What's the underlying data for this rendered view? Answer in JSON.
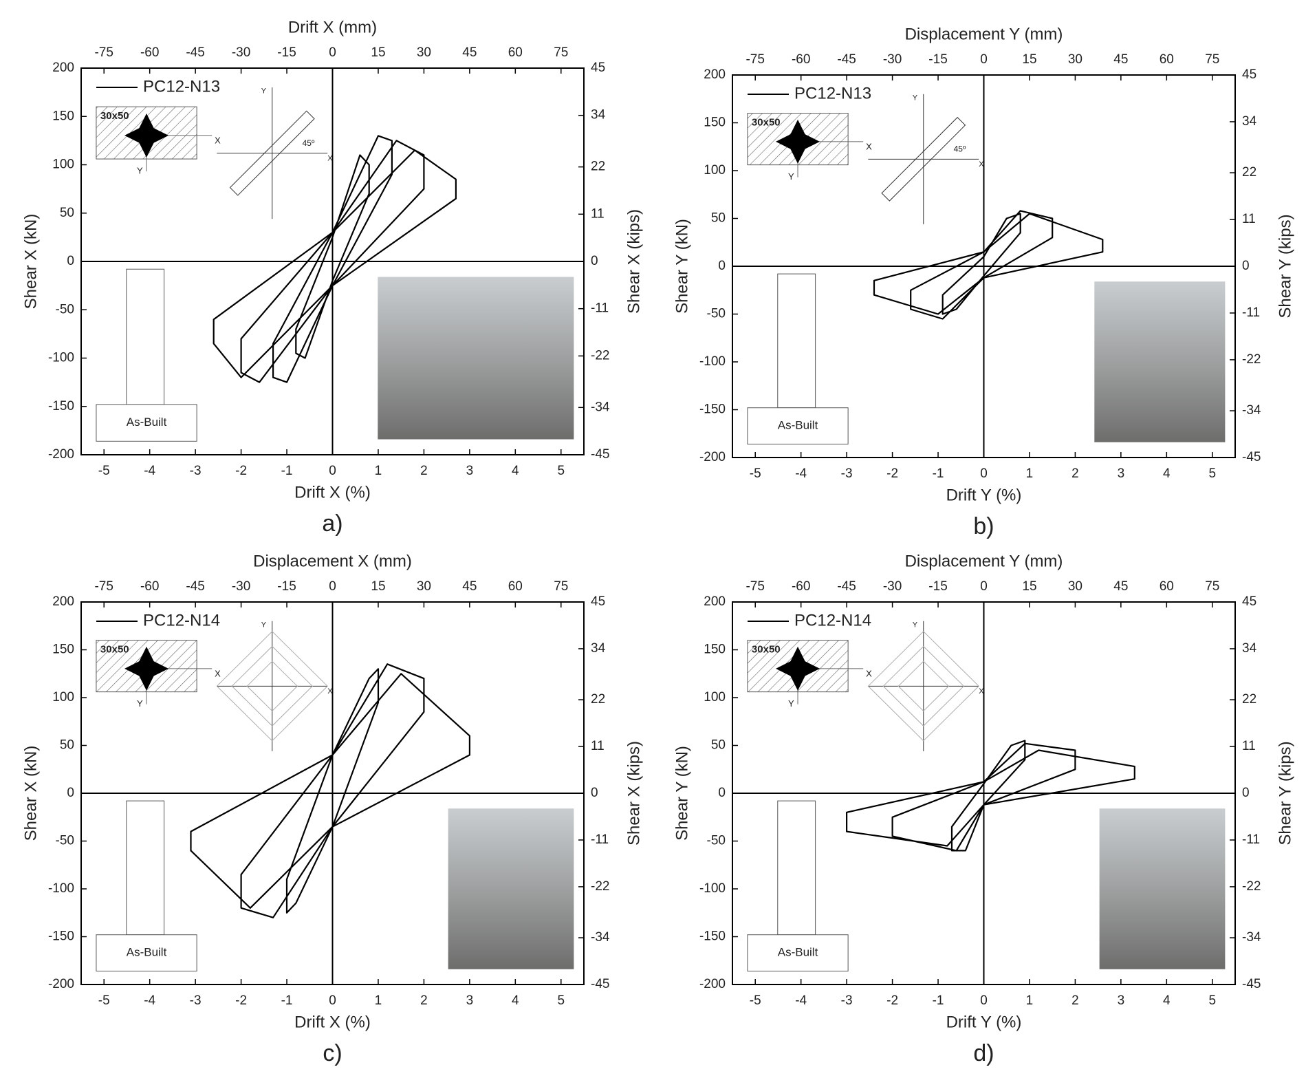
{
  "chart_data": [
    {
      "type": "line",
      "title": "a)",
      "xlabel": "Drift X (%)",
      "x2label": "Drift X (mm)",
      "ylabel": "Shear X (kN)",
      "y2label": "Shear X (kips)",
      "xlim": [
        -5.5,
        5.5
      ],
      "xticks": [
        -5,
        -4,
        -3,
        -2,
        -1,
        0,
        1,
        2,
        3,
        4,
        5
      ],
      "x2lim": [
        -82.5,
        82.5
      ],
      "x2ticks": [
        -75,
        -60,
        -45,
        -30,
        -15,
        0,
        15,
        30,
        45,
        60,
        75
      ],
      "ylim": [
        -200,
        200
      ],
      "yticks": [
        -200,
        -150,
        -100,
        -50,
        0,
        50,
        100,
        150,
        200
      ],
      "y2lim": [
        -45,
        45
      ],
      "y2ticks": [
        -45,
        -34,
        -22,
        -11,
        0,
        11,
        22,
        34,
        45
      ],
      "inset_labels": {
        "section": "30x50",
        "elevation": "As-Built",
        "axis_x": "X",
        "axis_y": "Y",
        "angle": "45º"
      },
      "series": [
        {
          "name": "PC12-N13",
          "color": "#000000",
          "x": [
            0,
            0.6,
            0.8,
            0.8,
            0,
            -0.6,
            -0.8,
            -0.8,
            0,
            null,
            0,
            1.0,
            1.3,
            1.3,
            0,
            -1.0,
            -1.3,
            -1.3,
            0,
            null,
            0,
            1.4,
            2.0,
            2.0,
            0,
            -1.6,
            -2.0,
            -2.0,
            0,
            null,
            0,
            1.8,
            2.7,
            2.7,
            0,
            -2.0,
            -2.6,
            -2.6,
            0
          ],
          "values": [
            25,
            110,
            100,
            70,
            -20,
            -100,
            -95,
            -70,
            25,
            null,
            30,
            130,
            125,
            90,
            -25,
            -125,
            -120,
            -85,
            30,
            null,
            30,
            125,
            110,
            75,
            -25,
            -125,
            -115,
            -80,
            30,
            null,
            30,
            115,
            85,
            65,
            -25,
            -120,
            -85,
            -60,
            30
          ]
        }
      ]
    },
    {
      "type": "line",
      "title": "b)",
      "xlabel": "Drift Y (%)",
      "x2label": "Displacement Y (mm)",
      "ylabel": "Shear Y (kN)",
      "y2label": "Shear Y (kips)",
      "xlim": [
        -5.5,
        5.5
      ],
      "xticks": [
        -5,
        -4,
        -3,
        -2,
        -1,
        0,
        1,
        2,
        3,
        4,
        5
      ],
      "x2lim": [
        -82.5,
        82.5
      ],
      "x2ticks": [
        -75,
        -60,
        -45,
        -30,
        -15,
        0,
        15,
        30,
        45,
        60,
        75
      ],
      "ylim": [
        -200,
        200
      ],
      "yticks": [
        -200,
        -150,
        -100,
        -50,
        0,
        50,
        100,
        150,
        200
      ],
      "y2lim": [
        -45,
        45
      ],
      "y2ticks": [
        -45,
        -34,
        -22,
        -11,
        0,
        11,
        22,
        34,
        45
      ],
      "inset_labels": {
        "section": "30x50",
        "elevation": "As-Built",
        "axis_x": "X",
        "axis_y": "Y",
        "angle": "45º"
      },
      "series": [
        {
          "name": "PC12-N13",
          "color": "#000000",
          "x": [
            0,
            0.5,
            0.8,
            0.8,
            0,
            -0.6,
            -0.9,
            -0.9,
            0,
            null,
            0,
            0.8,
            1.5,
            1.5,
            0,
            -0.9,
            -1.6,
            -1.6,
            0,
            null,
            0,
            1.0,
            2.6,
            2.6,
            0,
            -1.0,
            -2.4,
            -2.4,
            0
          ],
          "values": [
            10,
            50,
            55,
            35,
            -10,
            -45,
            -50,
            -30,
            10,
            null,
            15,
            58,
            50,
            30,
            -12,
            -55,
            -45,
            -25,
            15,
            null,
            15,
            55,
            28,
            15,
            -12,
            -50,
            -30,
            -15,
            15
          ]
        }
      ]
    },
    {
      "type": "line",
      "title": "c)",
      "xlabel": "Drift X (%)",
      "x2label": "Displacement X (mm)",
      "ylabel": "Shear X (kN)",
      "y2label": "Shear X (kips)",
      "xlim": [
        -5.5,
        5.5
      ],
      "xticks": [
        -5,
        -4,
        -3,
        -2,
        -1,
        0,
        1,
        2,
        3,
        4,
        5
      ],
      "x2lim": [
        -82.5,
        82.5
      ],
      "x2ticks": [
        -75,
        -60,
        -45,
        -30,
        -15,
        0,
        15,
        30,
        45,
        60,
        75
      ],
      "ylim": [
        -200,
        200
      ],
      "yticks": [
        -200,
        -150,
        -100,
        -50,
        0,
        50,
        100,
        150,
        200
      ],
      "y2lim": [
        -45,
        45
      ],
      "y2ticks": [
        -45,
        -34,
        -22,
        -11,
        0,
        11,
        22,
        34,
        45
      ],
      "inset_labels": {
        "section": "30x50",
        "elevation": "As-Built",
        "axis_x": "X",
        "axis_y": "Y"
      },
      "series": [
        {
          "name": "PC12-N14",
          "color": "#000000",
          "x": [
            0,
            0.8,
            1.0,
            1.0,
            0,
            -0.8,
            -1.0,
            -1.0,
            0,
            null,
            0,
            1.2,
            2.0,
            2.0,
            0,
            -1.3,
            -2.0,
            -2.0,
            0,
            null,
            0,
            1.5,
            3.0,
            3.0,
            0,
            -1.8,
            -3.1,
            -3.1,
            0
          ],
          "values": [
            40,
            120,
            130,
            95,
            -35,
            -115,
            -125,
            -90,
            40,
            null,
            40,
            135,
            120,
            85,
            -35,
            -130,
            -120,
            -85,
            40,
            null,
            40,
            125,
            60,
            40,
            -35,
            -120,
            -60,
            -40,
            40
          ]
        }
      ]
    },
    {
      "type": "line",
      "title": "d)",
      "xlabel": "Drift Y (%)",
      "x2label": "Displacement Y (mm)",
      "ylabel": "Shear Y (kN)",
      "y2label": "Shear Y (kips)",
      "xlim": [
        -5.5,
        5.5
      ],
      "xticks": [
        -5,
        -4,
        -3,
        -2,
        -1,
        0,
        1,
        2,
        3,
        4,
        5
      ],
      "x2lim": [
        -82.5,
        82.5
      ],
      "x2ticks": [
        -75,
        -60,
        -45,
        -30,
        -15,
        0,
        15,
        30,
        45,
        60,
        75
      ],
      "ylim": [
        -200,
        200
      ],
      "yticks": [
        -200,
        -150,
        -100,
        -50,
        0,
        50,
        100,
        150,
        200
      ],
      "y2lim": [
        -45,
        45
      ],
      "y2ticks": [
        -45,
        -34,
        -22,
        -11,
        0,
        11,
        22,
        34,
        45
      ],
      "inset_labels": {
        "section": "30x50",
        "elevation": "As-Built",
        "axis_x": "X",
        "axis_y": "Y"
      },
      "series": [
        {
          "name": "PC12-N14",
          "color": "#000000",
          "x": [
            0,
            0.6,
            0.9,
            0.9,
            0,
            -0.4,
            -0.7,
            -0.7,
            0,
            null,
            0,
            0.9,
            2.0,
            2.0,
            0,
            -0.6,
            -2.0,
            -2.0,
            0,
            null,
            0,
            1.2,
            3.3,
            3.3,
            0,
            -0.8,
            -3.0,
            -3.0,
            0
          ],
          "values": [
            10,
            50,
            55,
            35,
            -12,
            -60,
            -60,
            -35,
            10,
            null,
            12,
            52,
            45,
            25,
            -12,
            -60,
            -45,
            -25,
            12,
            null,
            12,
            45,
            28,
            15,
            -12,
            -55,
            -40,
            -20,
            12
          ]
        }
      ]
    }
  ]
}
